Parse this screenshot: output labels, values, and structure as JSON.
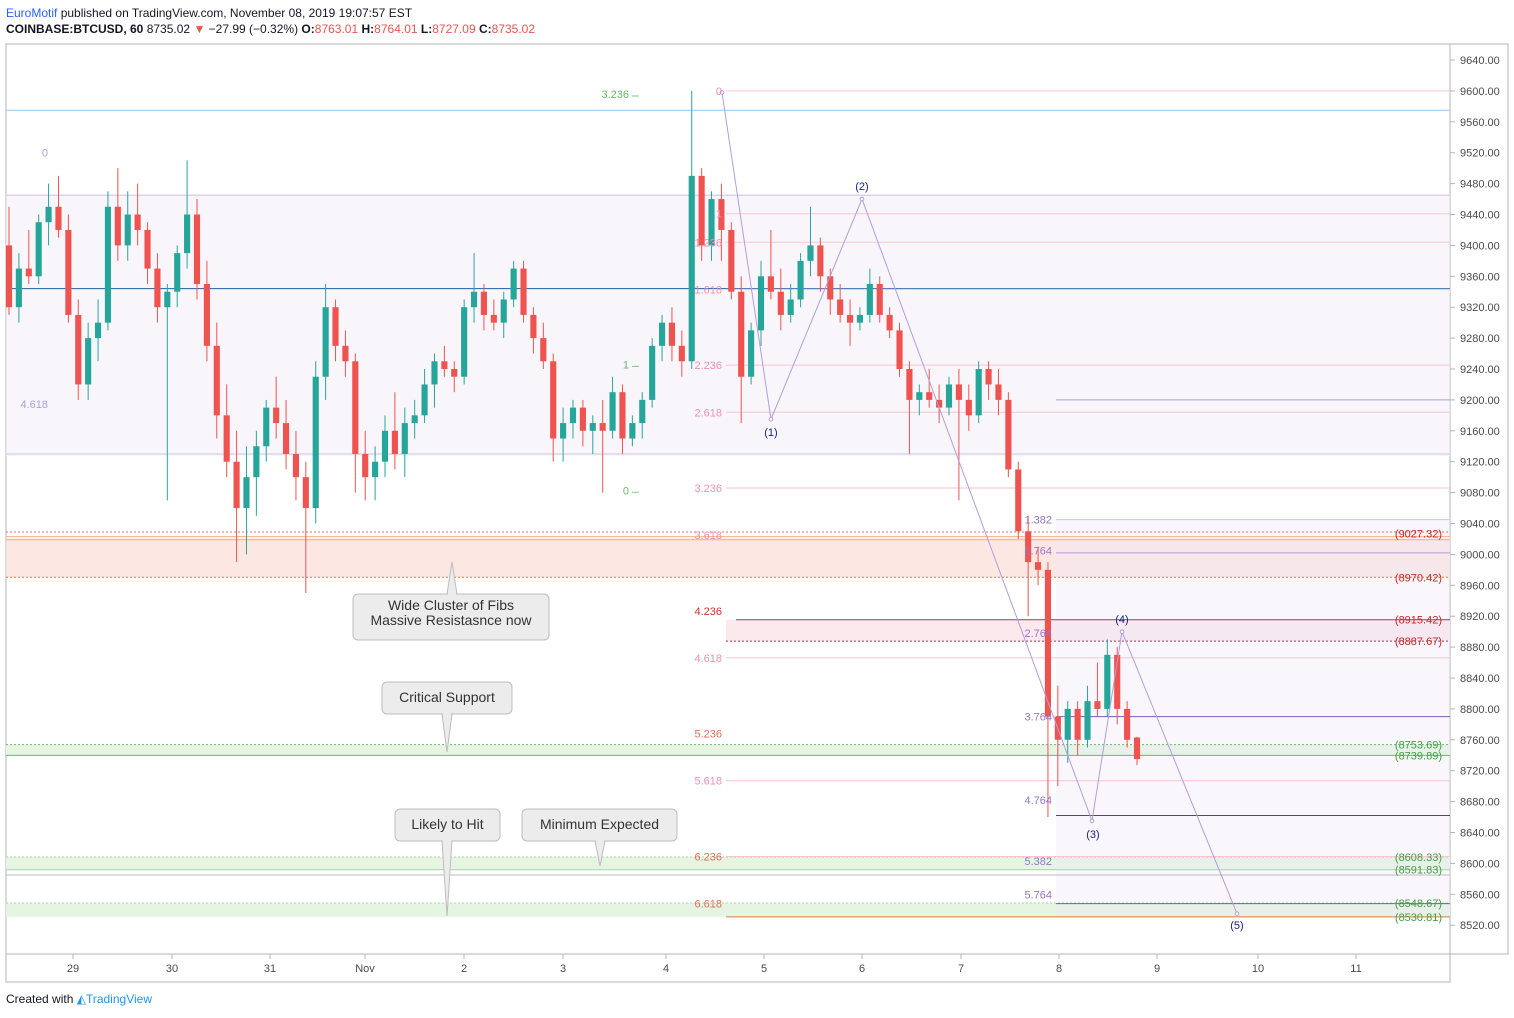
{
  "header": {
    "author": "EuroMotif",
    "published_text": " published on TradingView.com, November 08, 2019 19:07:57 EST",
    "symbol": "COINBASE:BTCUSD, 60",
    "last": "8735.02",
    "change": "−27.99 (−0.32%)",
    "o_label": "O:",
    "o": "8763.01",
    "h_label": "H:",
    "h": "8764.01",
    "l_label": "L:",
    "l": "8727.09",
    "c_label": "C:",
    "c": "8735.02"
  },
  "footer": {
    "created_with": "Created with",
    "brand": "TradingView"
  },
  "colors": {
    "up": "#26a69a",
    "down": "#ef5350",
    "wave": "#b39ddb",
    "wave_label": "#1a237e",
    "support": "#8bc34a"
  },
  "chart_data": {
    "type": "candlestick",
    "symbol": "COINBASE:BTCUSD",
    "interval": "60",
    "ylim": [
      8490,
      9670
    ],
    "y_ticks": [
      "9640.00",
      "9600.00",
      "9560.00",
      "9520.00",
      "9480.00",
      "9440.00",
      "9400.00",
      "9360.00",
      "9320.00",
      "9280.00",
      "9240.00",
      "9200.00",
      "9160.00",
      "9120.00",
      "9080.00",
      "9040.00",
      "9000.00",
      "8960.00",
      "8920.00",
      "8880.00",
      "8840.00",
      "8800.00",
      "8760.00",
      "8720.00",
      "8680.00",
      "8640.00",
      "8600.00",
      "8560.00",
      "8520.00"
    ],
    "x_ticks": [
      "29",
      "30",
      "31",
      "Nov",
      "2",
      "3",
      "4",
      "5",
      "6",
      "7",
      "8",
      "9",
      "10",
      "11"
    ],
    "candles": [
      {
        "o": 9400,
        "h": 9450,
        "l": 9310,
        "c": 9320
      },
      {
        "o": 9320,
        "h": 9390,
        "l": 9300,
        "c": 9370
      },
      {
        "o": 9370,
        "h": 9420,
        "l": 9350,
        "c": 9360
      },
      {
        "o": 9360,
        "h": 9440,
        "l": 9350,
        "c": 9430
      },
      {
        "o": 9430,
        "h": 9480,
        "l": 9400,
        "c": 9450
      },
      {
        "o": 9450,
        "h": 9490,
        "l": 9410,
        "c": 9420
      },
      {
        "o": 9420,
        "h": 9440,
        "l": 9300,
        "c": 9310
      },
      {
        "o": 9310,
        "h": 9330,
        "l": 9200,
        "c": 9220
      },
      {
        "o": 9220,
        "h": 9300,
        "l": 9200,
        "c": 9280
      },
      {
        "o": 9280,
        "h": 9330,
        "l": 9250,
        "c": 9300
      },
      {
        "o": 9300,
        "h": 9470,
        "l": 9290,
        "c": 9450
      },
      {
        "o": 9450,
        "h": 9500,
        "l": 9380,
        "c": 9400
      },
      {
        "o": 9400,
        "h": 9470,
        "l": 9380,
        "c": 9440
      },
      {
        "o": 9440,
        "h": 9480,
        "l": 9400,
        "c": 9420
      },
      {
        "o": 9420,
        "h": 9430,
        "l": 9350,
        "c": 9370
      },
      {
        "o": 9370,
        "h": 9390,
        "l": 9300,
        "c": 9320
      },
      {
        "o": 9320,
        "h": 9350,
        "l": 9070,
        "c": 9340
      },
      {
        "o": 9340,
        "h": 9400,
        "l": 9320,
        "c": 9390
      },
      {
        "o": 9390,
        "h": 9510,
        "l": 9370,
        "c": 9440
      },
      {
        "o": 9440,
        "h": 9460,
        "l": 9330,
        "c": 9350
      },
      {
        "o": 9350,
        "h": 9380,
        "l": 9250,
        "c": 9270
      },
      {
        "o": 9270,
        "h": 9300,
        "l": 9150,
        "c": 9180
      },
      {
        "o": 9180,
        "h": 9220,
        "l": 9100,
        "c": 9120
      },
      {
        "o": 9120,
        "h": 9160,
        "l": 8990,
        "c": 9060
      },
      {
        "o": 9060,
        "h": 9140,
        "l": 9000,
        "c": 9100
      },
      {
        "o": 9100,
        "h": 9160,
        "l": 9050,
        "c": 9140
      },
      {
        "o": 9140,
        "h": 9200,
        "l": 9120,
        "c": 9190
      },
      {
        "o": 9190,
        "h": 9230,
        "l": 9150,
        "c": 9170
      },
      {
        "o": 9170,
        "h": 9200,
        "l": 9110,
        "c": 9130
      },
      {
        "o": 9130,
        "h": 9160,
        "l": 9070,
        "c": 9100
      },
      {
        "o": 9100,
        "h": 9120,
        "l": 8950,
        "c": 9060
      },
      {
        "o": 9060,
        "h": 9250,
        "l": 9040,
        "c": 9230
      },
      {
        "o": 9230,
        "h": 9350,
        "l": 9200,
        "c": 9320
      },
      {
        "o": 9320,
        "h": 9330,
        "l": 9250,
        "c": 9270
      },
      {
        "o": 9270,
        "h": 9290,
        "l": 9230,
        "c": 9250
      },
      {
        "o": 9250,
        "h": 9260,
        "l": 9080,
        "c": 9130
      },
      {
        "o": 9130,
        "h": 9160,
        "l": 9070,
        "c": 9100
      },
      {
        "o": 9100,
        "h": 9140,
        "l": 9070,
        "c": 9120
      },
      {
        "o": 9120,
        "h": 9180,
        "l": 9100,
        "c": 9160
      },
      {
        "o": 9160,
        "h": 9210,
        "l": 9110,
        "c": 9130
      },
      {
        "o": 9130,
        "h": 9190,
        "l": 9100,
        "c": 9170
      },
      {
        "o": 9170,
        "h": 9200,
        "l": 9150,
        "c": 9180
      },
      {
        "o": 9180,
        "h": 9240,
        "l": 9170,
        "c": 9220
      },
      {
        "o": 9220,
        "h": 9260,
        "l": 9190,
        "c": 9250
      },
      {
        "o": 9250,
        "h": 9270,
        "l": 9230,
        "c": 9240
      },
      {
        "o": 9240,
        "h": 9250,
        "l": 9210,
        "c": 9230
      },
      {
        "o": 9230,
        "h": 9330,
        "l": 9220,
        "c": 9320
      },
      {
        "o": 9320,
        "h": 9390,
        "l": 9300,
        "c": 9340
      },
      {
        "o": 9340,
        "h": 9350,
        "l": 9290,
        "c": 9310
      },
      {
        "o": 9310,
        "h": 9330,
        "l": 9290,
        "c": 9300
      },
      {
        "o": 9300,
        "h": 9340,
        "l": 9280,
        "c": 9330
      },
      {
        "o": 9330,
        "h": 9380,
        "l": 9320,
        "c": 9370
      },
      {
        "o": 9370,
        "h": 9380,
        "l": 9300,
        "c": 9310
      },
      {
        "o": 9310,
        "h": 9320,
        "l": 9260,
        "c": 9280
      },
      {
        "o": 9280,
        "h": 9300,
        "l": 9240,
        "c": 9250
      },
      {
        "o": 9250,
        "h": 9260,
        "l": 9120,
        "c": 9150
      },
      {
        "o": 9150,
        "h": 9190,
        "l": 9120,
        "c": 9170
      },
      {
        "o": 9170,
        "h": 9200,
        "l": 9150,
        "c": 9190
      },
      {
        "o": 9190,
        "h": 9200,
        "l": 9140,
        "c": 9160
      },
      {
        "o": 9160,
        "h": 9180,
        "l": 9130,
        "c": 9170
      },
      {
        "o": 9170,
        "h": 9200,
        "l": 9080,
        "c": 9160
      },
      {
        "o": 9160,
        "h": 9230,
        "l": 9150,
        "c": 9210
      },
      {
        "o": 9210,
        "h": 9220,
        "l": 9130,
        "c": 9150
      },
      {
        "o": 9150,
        "h": 9180,
        "l": 9140,
        "c": 9170
      },
      {
        "o": 9170,
        "h": 9210,
        "l": 9150,
        "c": 9200
      },
      {
        "o": 9200,
        "h": 9280,
        "l": 9190,
        "c": 9270
      },
      {
        "o": 9270,
        "h": 9310,
        "l": 9250,
        "c": 9300
      },
      {
        "o": 9300,
        "h": 9320,
        "l": 9250,
        "c": 9270
      },
      {
        "o": 9270,
        "h": 9290,
        "l": 9230,
        "c": 9250
      },
      {
        "o": 9250,
        "h": 9600,
        "l": 9240,
        "c": 9490
      },
      {
        "o": 9490,
        "h": 9500,
        "l": 9380,
        "c": 9400
      },
      {
        "o": 9400,
        "h": 9470,
        "l": 9380,
        "c": 9460
      },
      {
        "o": 9460,
        "h": 9480,
        "l": 9380,
        "c": 9420
      },
      {
        "o": 9420,
        "h": 9430,
        "l": 9330,
        "c": 9340
      },
      {
        "o": 9340,
        "h": 9360,
        "l": 9170,
        "c": 9230
      },
      {
        "o": 9230,
        "h": 9300,
        "l": 9220,
        "c": 9290
      },
      {
        "o": 9290,
        "h": 9380,
        "l": 9270,
        "c": 9360
      },
      {
        "o": 9360,
        "h": 9420,
        "l": 9330,
        "c": 9340
      },
      {
        "o": 9340,
        "h": 9370,
        "l": 9290,
        "c": 9310
      },
      {
        "o": 9310,
        "h": 9350,
        "l": 9300,
        "c": 9330
      },
      {
        "o": 9330,
        "h": 9390,
        "l": 9320,
        "c": 9380
      },
      {
        "o": 9380,
        "h": 9450,
        "l": 9360,
        "c": 9400
      },
      {
        "o": 9400,
        "h": 9410,
        "l": 9340,
        "c": 9360
      },
      {
        "o": 9360,
        "h": 9370,
        "l": 9310,
        "c": 9330
      },
      {
        "o": 9330,
        "h": 9350,
        "l": 9300,
        "c": 9310
      },
      {
        "o": 9310,
        "h": 9330,
        "l": 9270,
        "c": 9300
      },
      {
        "o": 9300,
        "h": 9320,
        "l": 9290,
        "c": 9310
      },
      {
        "o": 9310,
        "h": 9370,
        "l": 9300,
        "c": 9350
      },
      {
        "o": 9350,
        "h": 9360,
        "l": 9300,
        "c": 9310
      },
      {
        "o": 9310,
        "h": 9320,
        "l": 9280,
        "c": 9290
      },
      {
        "o": 9290,
        "h": 9300,
        "l": 9230,
        "c": 9240
      },
      {
        "o": 9240,
        "h": 9250,
        "l": 9130,
        "c": 9200
      },
      {
        "o": 9200,
        "h": 9220,
        "l": 9180,
        "c": 9210
      },
      {
        "o": 9210,
        "h": 9240,
        "l": 9190,
        "c": 9200
      },
      {
        "o": 9200,
        "h": 9220,
        "l": 9170,
        "c": 9190
      },
      {
        "o": 9190,
        "h": 9230,
        "l": 9180,
        "c": 9220
      },
      {
        "o": 9220,
        "h": 9240,
        "l": 9070,
        "c": 9200
      },
      {
        "o": 9200,
        "h": 9220,
        "l": 9160,
        "c": 9180
      },
      {
        "o": 9180,
        "h": 9250,
        "l": 9170,
        "c": 9240
      },
      {
        "o": 9240,
        "h": 9250,
        "l": 9200,
        "c": 9220
      },
      {
        "o": 9220,
        "h": 9240,
        "l": 9180,
        "c": 9200
      },
      {
        "o": 9200,
        "h": 9210,
        "l": 9100,
        "c": 9110
      },
      {
        "o": 9110,
        "h": 9120,
        "l": 9020,
        "c": 9030
      },
      {
        "o": 9030,
        "h": 9050,
        "l": 8920,
        "c": 8990
      },
      {
        "o": 8990,
        "h": 9010,
        "l": 8960,
        "c": 8980
      },
      {
        "o": 8980,
        "h": 8990,
        "l": 8660,
        "c": 8790
      },
      {
        "o": 8790,
        "h": 8830,
        "l": 8700,
        "c": 8760
      },
      {
        "o": 8760,
        "h": 8810,
        "l": 8730,
        "c": 8800
      },
      {
        "o": 8800,
        "h": 8810,
        "l": 8740,
        "c": 8760
      },
      {
        "o": 8760,
        "h": 8830,
        "l": 8750,
        "c": 8810
      },
      {
        "o": 8810,
        "h": 8860,
        "l": 8790,
        "c": 8800
      },
      {
        "o": 8800,
        "h": 8890,
        "l": 8790,
        "c": 8870
      },
      {
        "o": 8870,
        "h": 8880,
        "l": 8780,
        "c": 8800
      },
      {
        "o": 8800,
        "h": 8810,
        "l": 8750,
        "c": 8760
      },
      {
        "o": 8763.01,
        "h": 8764.01,
        "l": 8727.09,
        "c": 8735.02
      }
    ],
    "price_tags": [
      {
        "label": "(9027.32)",
        "price": 9027.32,
        "color": "#c62828"
      },
      {
        "label": "(8970.42)",
        "price": 8970.42,
        "color": "#c62828"
      },
      {
        "label": "(8915.42)",
        "price": 8915.42,
        "color": "#c62828"
      },
      {
        "label": "(8887.67)",
        "price": 8887.67,
        "color": "#c62828"
      },
      {
        "label": "(8753.69)",
        "price": 8753.69,
        "color": "#43a047"
      },
      {
        "label": "(8739.89)",
        "price": 8739.89,
        "color": "#43a047"
      },
      {
        "label": "(8608.33)",
        "price": 8608.33,
        "color": "#43a047"
      },
      {
        "label": "(8591.83)",
        "price": 8591.83,
        "color": "#43a047"
      },
      {
        "label": "(8548.67)",
        "price": 8548.67,
        "color": "#43a047"
      },
      {
        "label": "(8530.81)",
        "price": 8530.81,
        "color": "#43a047"
      }
    ],
    "fib_extension_labels": [
      {
        "label": "0",
        "price": 9600
      },
      {
        "label": "1",
        "price": 9441
      },
      {
        "label": "1.236",
        "price": 9404
      },
      {
        "label": "1.618",
        "price": 9343
      },
      {
        "label": "2.236",
        "price": 9245
      },
      {
        "label": "2.618",
        "price": 9184
      },
      {
        "label": "3.236",
        "price": 9086
      },
      {
        "label": "3.618",
        "price": 9025
      },
      {
        "label": "4.236",
        "price": 8927
      },
      {
        "label": "4.618",
        "price": 8866
      },
      {
        "label": "5.236",
        "price": 8768
      },
      {
        "label": "5.618",
        "price": 8707
      },
      {
        "label": "6.236",
        "price": 8609
      },
      {
        "label": "6.618",
        "price": 8548
      }
    ],
    "fib_small_labels": [
      {
        "label": "1.382",
        "price": 9045
      },
      {
        "label": "1.764",
        "price": 9005
      },
      {
        "label": "2.764",
        "price": 8898
      },
      {
        "label": "3.764",
        "price": 8790
      },
      {
        "label": "4.764",
        "price": 8682
      },
      {
        "label": "5.382",
        "price": 8603
      },
      {
        "label": "5.764",
        "price": 8560
      }
    ],
    "fib_left_labels": [
      {
        "label": "0",
        "price": 9520
      },
      {
        "label": "4.618",
        "price": 9195
      }
    ],
    "fib_green_labels": [
      {
        "label": "3.236",
        "price": 9596
      },
      {
        "label": "1",
        "price": 9246
      },
      {
        "label": "0",
        "price": 9083
      }
    ],
    "waves": [
      {
        "label": "(1)",
        "price": 9175
      },
      {
        "label": "(2)",
        "price": 9460
      },
      {
        "label": "(3)",
        "price": 8655
      },
      {
        "label": "(4)",
        "price": 8900
      },
      {
        "label": "(5)",
        "price": 8535
      }
    ],
    "annotations": [
      {
        "text_lines": [
          "Wide Cluster of Fibs",
          "Massive Resistasnce now"
        ]
      },
      {
        "text_lines": [
          "Critical Support"
        ]
      },
      {
        "text_lines": [
          "Likely to Hit"
        ]
      },
      {
        "text_lines": [
          "Minimum Expected"
        ]
      }
    ]
  }
}
